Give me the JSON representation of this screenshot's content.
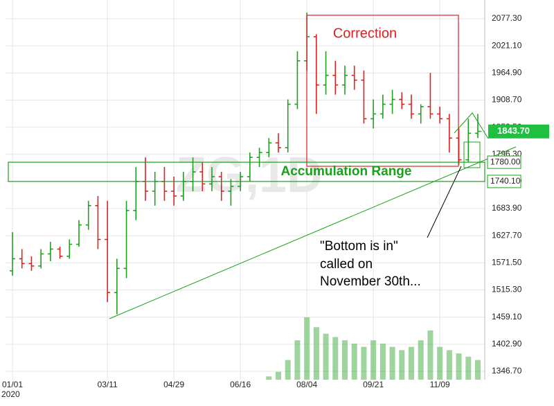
{
  "chart_data": {
    "type": "ohlc",
    "watermark": "ZG,1D",
    "categories": [
      "01/01",
      null,
      null,
      null,
      null,
      null,
      null,
      null,
      null,
      null,
      "03/11",
      null,
      null,
      null,
      null,
      null,
      null,
      "04/29",
      null,
      null,
      null,
      null,
      null,
      null,
      "06/16",
      null,
      null,
      null,
      null,
      null,
      null,
      "08/04",
      null,
      null,
      null,
      null,
      null,
      null,
      "09/21",
      null,
      null,
      null,
      null,
      null,
      null,
      "11/09",
      null,
      null,
      null,
      null
    ],
    "x_sublabel": "2020",
    "open": [
      1555,
      1580,
      1570,
      1565,
      1590,
      1600,
      1585,
      1610,
      1650,
      1690,
      1620,
      1510,
      1560,
      1680,
      1740,
      1720,
      1740,
      1720,
      1710,
      1740,
      1760,
      1735,
      1750,
      1720,
      1730,
      1750,
      1790,
      1800,
      1820,
      1810,
      1900,
      1990,
      2040,
      1940,
      1960,
      1940,
      1960,
      1950,
      1870,
      1880,
      1900,
      1910,
      1900,
      1880,
      1895,
      1880,
      1870,
      1830,
      1785,
      1840
    ],
    "high": [
      1635,
      1600,
      1585,
      1600,
      1615,
      1605,
      1620,
      1660,
      1700,
      1710,
      1700,
      1580,
      1700,
      1770,
      1790,
      1760,
      1770,
      1750,
      1760,
      1790,
      1780,
      1770,
      1760,
      1745,
      1760,
      1800,
      1810,
      1830,
      1840,
      1910,
      2010,
      2090,
      2045,
      2010,
      1990,
      1980,
      1980,
      1970,
      1910,
      1920,
      1930,
      1925,
      1920,
      1900,
      1965,
      1895,
      1880,
      1850,
      1870,
      1880
    ],
    "low": [
      1545,
      1560,
      1555,
      1560,
      1575,
      1580,
      1580,
      1605,
      1640,
      1600,
      1490,
      1465,
      1540,
      1660,
      1700,
      1690,
      1700,
      1690,
      1700,
      1720,
      1720,
      1720,
      1700,
      1690,
      1720,
      1740,
      1770,
      1790,
      1800,
      1800,
      1890,
      1970,
      1880,
      1920,
      1920,
      1920,
      1930,
      1860,
      1850,
      1870,
      1880,
      1890,
      1870,
      1860,
      1870,
      1860,
      1800,
      1775,
      1780,
      1830
    ],
    "close": [
      1580,
      1570,
      1565,
      1590,
      1600,
      1585,
      1610,
      1650,
      1690,
      1620,
      1510,
      1560,
      1680,
      1740,
      1720,
      1740,
      1720,
      1710,
      1740,
      1760,
      1735,
      1750,
      1720,
      1730,
      1750,
      1790,
      1800,
      1820,
      1810,
      1900,
      1990,
      2040,
      1940,
      1960,
      1940,
      1960,
      1950,
      1870,
      1880,
      1900,
      1910,
      1900,
      1880,
      1895,
      1880,
      1870,
      1830,
      1785,
      1840,
      1844
    ],
    "up_color": "#1f9e1f",
    "down_color": "#e02020",
    "volume": [
      null,
      null,
      null,
      null,
      null,
      null,
      null,
      null,
      null,
      null,
      null,
      null,
      null,
      null,
      null,
      null,
      null,
      null,
      null,
      null,
      null,
      null,
      null,
      null,
      null,
      null,
      null,
      5,
      12,
      30,
      60,
      95,
      80,
      70,
      65,
      60,
      55,
      50,
      60,
      55,
      50,
      45,
      50,
      60,
      75,
      50,
      45,
      40,
      35,
      30
    ],
    "volume_color": "#4fb04f",
    "ylim": [
      1329.5,
      2116
    ],
    "yticks": [
      {
        "value": 1346.7,
        "label": "1346.70"
      },
      {
        "value": 1402.9,
        "label": "1402.90"
      },
      {
        "value": 1459.1,
        "label": "1459.10"
      },
      {
        "value": 1515.3,
        "label": "1515.30"
      },
      {
        "value": 1571.5,
        "label": "1571.50"
      },
      {
        "value": 1627.7,
        "label": "1627.70"
      },
      {
        "value": 1683.9,
        "label": "1683.90"
      },
      {
        "value": 1740.1,
        "label": "1740.10"
      },
      {
        "value": 1796.3,
        "label": "1796.30"
      },
      {
        "value": 1852.5,
        "label": "1852.50"
      },
      {
        "value": 1908.7,
        "label": "1908.70"
      },
      {
        "value": 1964.9,
        "label": "1964.90"
      },
      {
        "value": 2021.1,
        "label": "2021.10"
      },
      {
        "value": 2077.3,
        "label": "2077.30"
      }
    ],
    "grid": true,
    "last_price": {
      "value": 1843.7,
      "label": "1843.70",
      "color": "#1fbf3f"
    },
    "accumulation_range": {
      "text": "Accumulation Range",
      "high": {
        "value": 1780,
        "label": "1780.00"
      },
      "low": {
        "value": 1740.1,
        "label": "1740.10"
      },
      "color": "#1aa01a"
    },
    "correction": {
      "text": "Correction",
      "color": "#e02020"
    },
    "note": [
      "\"Bottom is in\"",
      "called on",
      "November 30th..."
    ]
  }
}
